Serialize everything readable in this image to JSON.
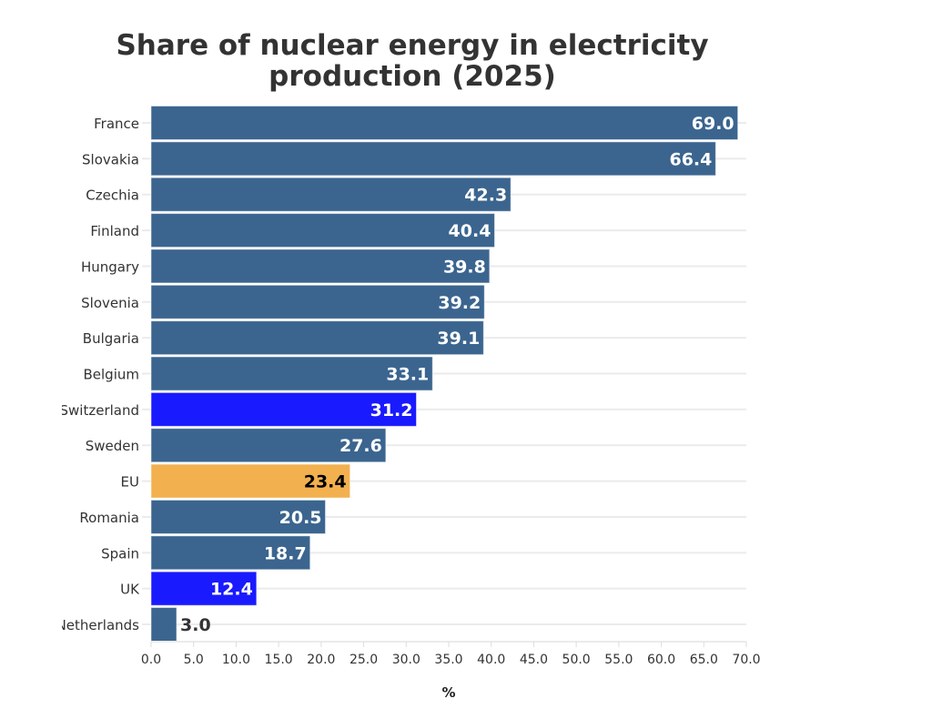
{
  "chart_data": {
    "type": "bar",
    "orientation": "horizontal",
    "title": [
      "Share of nuclear energy in electricity",
      "production (2025)"
    ],
    "xlabel": "%",
    "ylabel": "",
    "xlim": [
      0,
      70
    ],
    "xticks": [
      "0.0",
      "5.0",
      "10.0",
      "15.0",
      "20.0",
      "25.0",
      "30.0",
      "35.0",
      "40.0",
      "45.0",
      "50.0",
      "55.0",
      "60.0",
      "65.0",
      "70.0"
    ],
    "grid": true,
    "categories": [
      "France",
      "Slovakia",
      "Czechia",
      "Finland",
      "Hungary",
      "Slovenia",
      "Bulgaria",
      "Belgium",
      "Switzerland",
      "Sweden",
      "EU",
      "Romania",
      "Spain",
      "UK",
      "Netherlands"
    ],
    "values": [
      69.0,
      66.4,
      42.3,
      40.4,
      39.8,
      39.2,
      39.1,
      33.1,
      31.2,
      27.6,
      23.4,
      20.5,
      18.7,
      12.4,
      3.0
    ],
    "data_labels": [
      "69.0",
      "66.4",
      "42.3",
      "40.4",
      "39.8",
      "39.2",
      "39.1",
      "33.1",
      "31.2",
      "27.6",
      "23.4",
      "20.5",
      "18.7",
      "12.4",
      "3.0"
    ],
    "bar_colors": [
      "#3b658f",
      "#3b658f",
      "#3b658f",
      "#3b658f",
      "#3b658f",
      "#3b658f",
      "#3b658f",
      "#3b658f",
      "#1a1aff",
      "#3b658f",
      "#f2b04f",
      "#3b658f",
      "#3b658f",
      "#1a1aff",
      "#3b658f"
    ],
    "label_colors": [
      "#ffffff",
      "#ffffff",
      "#ffffff",
      "#ffffff",
      "#ffffff",
      "#ffffff",
      "#ffffff",
      "#ffffff",
      "#ffffff",
      "#ffffff",
      "#000000",
      "#ffffff",
      "#ffffff",
      "#ffffff",
      "#333333"
    ]
  }
}
